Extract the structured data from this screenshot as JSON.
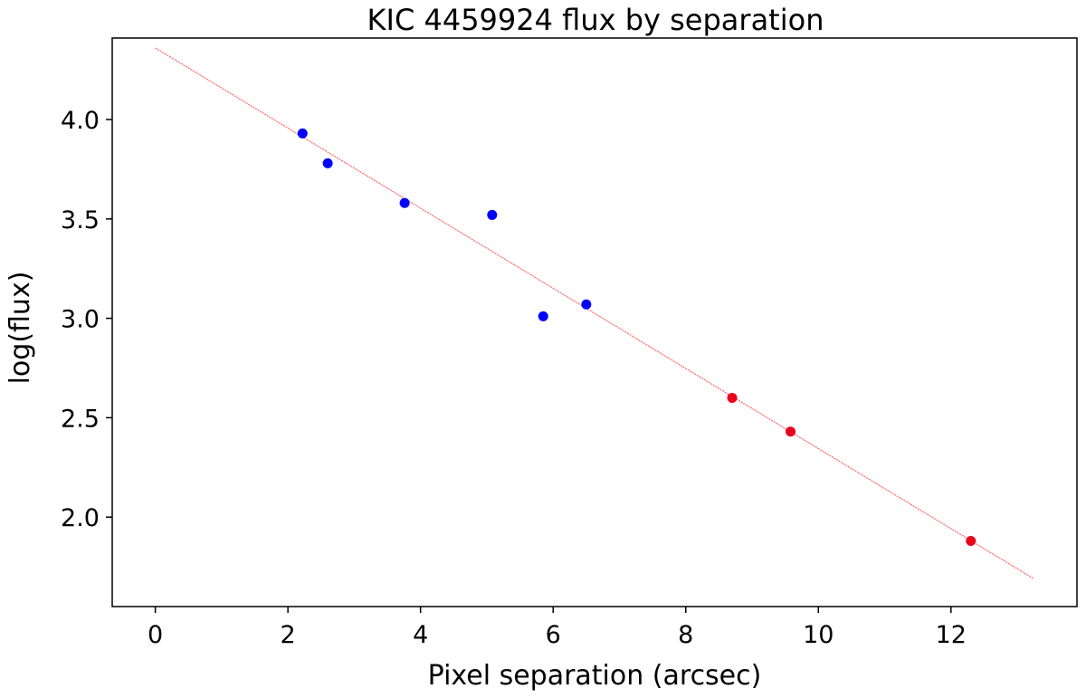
{
  "chart_data": {
    "type": "scatter",
    "title": "KIC 4459924 flux by separation",
    "xlabel": "Pixel separation (arcsec)",
    "ylabel": "log(flux)",
    "xlim": [
      -0.65,
      13.9
    ],
    "ylim": [
      1.55,
      4.41
    ],
    "x_ticks": [
      0,
      2,
      4,
      6,
      8,
      10,
      12
    ],
    "y_ticks": [
      2.0,
      2.5,
      3.0,
      3.5,
      4.0
    ],
    "x_tick_labels": [
      "0",
      "2",
      "4",
      "6",
      "8",
      "10",
      "12"
    ],
    "y_tick_labels": [
      "2.0",
      "2.5",
      "3.0",
      "3.5",
      "4.0"
    ],
    "grid": false,
    "series": [
      {
        "color": "#0000ff",
        "points": [
          {
            "x": 2.22,
            "y": 3.93
          },
          {
            "x": 2.6,
            "y": 3.78
          },
          {
            "x": 3.76,
            "y": 3.58
          },
          {
            "x": 5.08,
            "y": 3.52
          },
          {
            "x": 5.85,
            "y": 3.01
          },
          {
            "x": 6.5,
            "y": 3.07
          }
        ]
      },
      {
        "color": "#e8001c",
        "points": [
          {
            "x": 8.7,
            "y": 2.6
          },
          {
            "x": 9.58,
            "y": 2.43
          },
          {
            "x": 12.3,
            "y": 1.88
          }
        ]
      }
    ],
    "fit_line": {
      "color": "#ff6666",
      "x": [
        0,
        13.25
      ],
      "y": [
        4.36,
        1.69
      ]
    }
  }
}
